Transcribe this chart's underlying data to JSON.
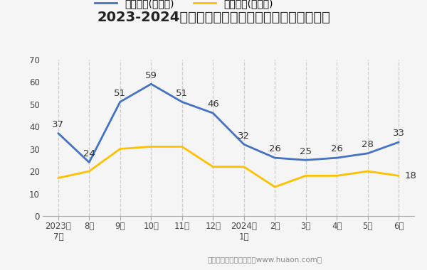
{
  "title": "2023-2024年郑州市商品收发货人所在地进、出口额",
  "x_labels": [
    "2023年\n7月",
    "8月",
    "9月",
    "10月",
    "11月",
    "12月",
    "2024年\n1月",
    "2月",
    "3月",
    "4月",
    "5月",
    "6月"
  ],
  "export_values": [
    37,
    24,
    51,
    59,
    51,
    46,
    32,
    26,
    25,
    26,
    28,
    33
  ],
  "import_values": [
    17,
    20,
    30,
    31,
    31,
    22,
    22,
    13,
    18,
    18,
    20,
    18
  ],
  "export_label": "出口总额(亿美元)",
  "import_label": "进口总额(亿美元)",
  "export_color": "#4472c4",
  "import_color": "#ffc000",
  "ylim": [
    0,
    70
  ],
  "yticks": [
    0,
    10,
    20,
    30,
    40,
    50,
    60,
    70
  ],
  "vline_color": "#cccccc",
  "background_color": "#f5f5f5",
  "plot_bg_color": "#f5f5f5",
  "title_fontsize": 14,
  "legend_fontsize": 10,
  "label_fontsize": 9.5,
  "tick_fontsize": 8.5,
  "footer_text": "制图：华经产业研究院（www.huaon.com）",
  "footer_fontsize": 7.5
}
